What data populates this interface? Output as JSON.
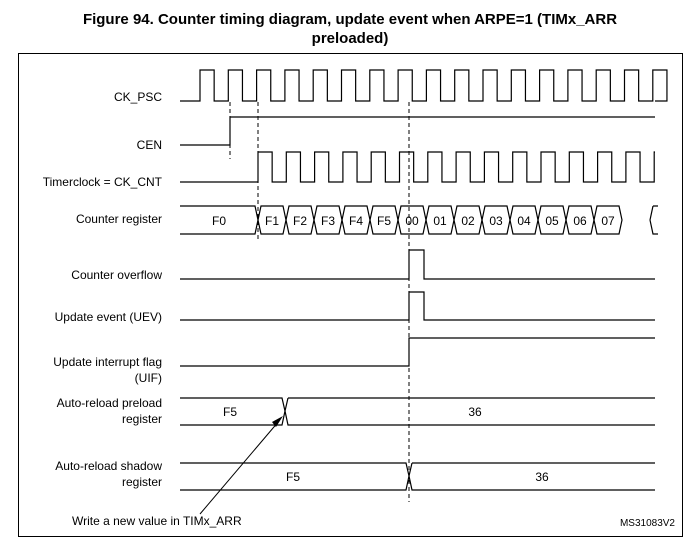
{
  "title_line1": "Figure 94. Counter timing diagram, update event when ARPE=1 (TIMx_ARR",
  "title_line2": "preloaded)",
  "signals": {
    "ck_psc": "CK_PSC",
    "cen": "CEN",
    "timerclock": "Timerclock = CK_CNT",
    "counter_register": "Counter register",
    "counter_overflow": "Counter overflow",
    "uev": "Update event (UEV)",
    "uif_line1": "Update interrupt flag",
    "uif_line2": "(UIF)",
    "arr_preload_line1": "Auto-reload preload",
    "arr_preload_line2": "register",
    "arr_shadow_line1": "Auto-reload shadow",
    "arr_shadow_line2": "register"
  },
  "counter_values": [
    "F0",
    "F1",
    "F2",
    "F3",
    "F4",
    "F5",
    "00",
    "01",
    "02",
    "03",
    "04",
    "05",
    "06",
    "07"
  ],
  "preload_values": [
    "F5",
    "36"
  ],
  "shadow_values": [
    "F5",
    "36"
  ],
  "annotation": "Write a new value in TIMx_ARR",
  "figure_id": "MS31083V2"
}
